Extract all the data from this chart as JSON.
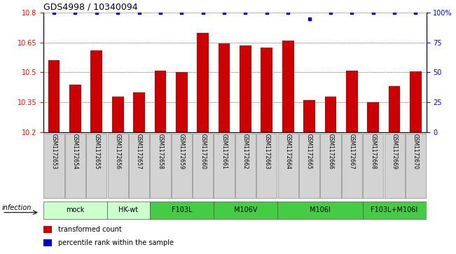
{
  "title": "GDS4998 / 10340094",
  "samples": [
    "GSM1172653",
    "GSM1172654",
    "GSM1172655",
    "GSM1172656",
    "GSM1172657",
    "GSM1172658",
    "GSM1172659",
    "GSM1172660",
    "GSM1172661",
    "GSM1172662",
    "GSM1172663",
    "GSM1172664",
    "GSM1172665",
    "GSM1172666",
    "GSM1172667",
    "GSM1172668",
    "GSM1172669",
    "GSM1172670"
  ],
  "bar_values": [
    10.56,
    10.44,
    10.61,
    10.38,
    10.4,
    10.51,
    10.5,
    10.7,
    10.645,
    10.635,
    10.625,
    10.66,
    10.36,
    10.38,
    10.51,
    10.35,
    10.43,
    10.505
  ],
  "percentile_values": [
    100,
    100,
    100,
    100,
    100,
    100,
    100,
    100,
    100,
    100,
    100,
    100,
    95,
    100,
    100,
    100,
    100,
    100
  ],
  "ylim_left": [
    10.2,
    10.8
  ],
  "ylim_right": [
    0,
    100
  ],
  "yticks_left": [
    10.2,
    10.35,
    10.5,
    10.65,
    10.8
  ],
  "yticks_right": [
    0,
    25,
    50,
    75,
    100
  ],
  "bar_color": "#cc0000",
  "dot_color": "#0000cc",
  "background_color": "#ffffff",
  "groups_data": [
    {
      "label": "mock",
      "indices": [
        0,
        1,
        2
      ],
      "color": "#ccffcc"
    },
    {
      "label": "HK-wt",
      "indices": [
        3,
        4
      ],
      "color": "#ccffcc"
    },
    {
      "label": "F103L",
      "indices": [
        5,
        6,
        7
      ],
      "color": "#44cc44"
    },
    {
      "label": "M106V",
      "indices": [
        8,
        9,
        10
      ],
      "color": "#44cc44"
    },
    {
      "label": "M106I",
      "indices": [
        11,
        12,
        13,
        14
      ],
      "color": "#44cc44"
    },
    {
      "label": "F103L+M106I",
      "indices": [
        15,
        16,
        17
      ],
      "color": "#44cc44"
    }
  ],
  "infection_label": "infection",
  "legend_items": [
    {
      "color": "#cc0000",
      "label": "transformed count"
    },
    {
      "color": "#0000cc",
      "label": "percentile rank within the sample"
    }
  ]
}
